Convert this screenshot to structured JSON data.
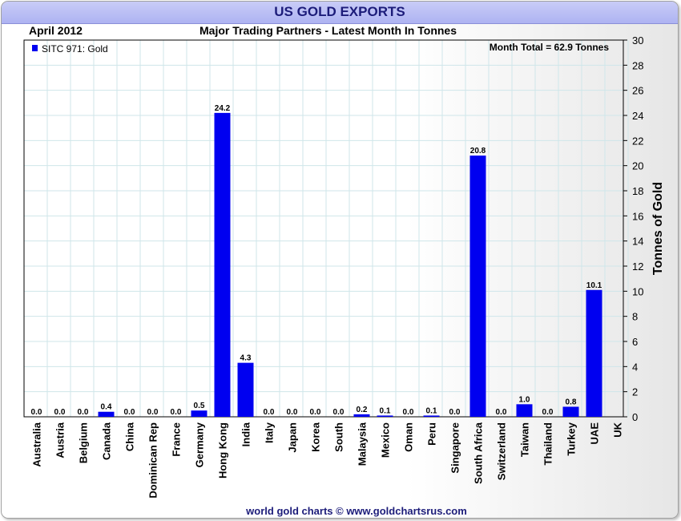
{
  "header": {
    "title": "US GOLD EXPORTS",
    "date": "April 2012",
    "subtitle": "Major Trading Partners - Latest Month In Tonnes"
  },
  "footer": {
    "credit": "world gold charts © www.goldchartsrus.com"
  },
  "colors": {
    "bar": "#0000f0",
    "grid": "#cfe6ea",
    "title_text": "#1c1c7a"
  },
  "chart_data": {
    "type": "bar",
    "title": "US GOLD EXPORTS",
    "subtitle": "Major Trading Partners - Latest Month In Tonnes",
    "xlabel": "",
    "ylabel": "Tonnes of Gold",
    "ylim": [
      0,
      30
    ],
    "y_ticks": [
      "0",
      "2",
      "4",
      "6",
      "8",
      "10",
      "12",
      "14",
      "16",
      "18",
      "20",
      "22",
      "24",
      "26",
      "28",
      "30"
    ],
    "legend": {
      "label": "SITC 971: Gold",
      "position": "top-left"
    },
    "annotation": "Month Total = 62.9 Tonnes",
    "grid": true,
    "categories": [
      "Australia",
      "Austria",
      "Belgium",
      "Canada",
      "China",
      "Dominican Rep",
      "France",
      "Germany",
      "Hong Kong",
      "India",
      "Italy",
      "Japan",
      "Korea",
      "South",
      "Malaysia",
      "Mexico",
      "Oman",
      "Peru",
      "Singapore",
      "South Africa",
      "Switzerland",
      "Taiwan",
      "Thailand",
      "Turkey",
      "UAE",
      "UK"
    ],
    "values": [
      0.0,
      0.0,
      0.0,
      0.4,
      0.0,
      0.0,
      0.0,
      0.5,
      24.2,
      4.3,
      0.0,
      0.0,
      0.0,
      0.0,
      0.2,
      0.1,
      0.0,
      0.1,
      0.0,
      20.8,
      0.0,
      1.0,
      0.0,
      0.8,
      10.1,
      null
    ],
    "labels": [
      "0.0",
      "0.0",
      "0.0",
      "0.4",
      "0.0",
      "0.0",
      "0.0",
      "0.5",
      "24.2",
      "4.3",
      "0.0",
      "0.0",
      "0.0",
      "0.0",
      "0.2",
      "0.1",
      "0.0",
      "0.1",
      "0.0",
      "20.8",
      "0.0",
      "1.0",
      "0.0",
      "0.8",
      "10.1",
      ""
    ]
  }
}
